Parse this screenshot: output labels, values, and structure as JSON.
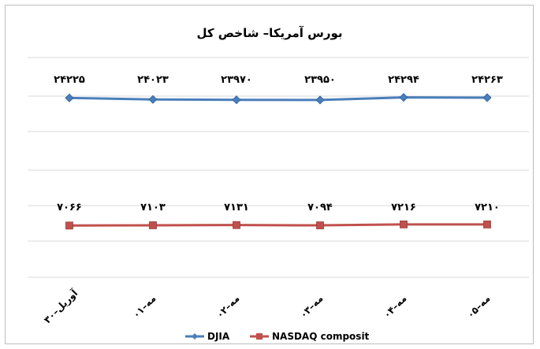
{
  "chart_data": {
    "type": "line",
    "title": "بورس آمریکا– شاخص کل",
    "categories": [
      "۳۰–آوریل",
      "۰۱–مه",
      "۰۲–مه",
      "۰۳–مه",
      "۰۴–مه",
      "۰۵–مه"
    ],
    "series": [
      {
        "name": "DJIA",
        "values": [
          24225,
          24023,
          23970,
          23950,
          24294,
          24263
        ],
        "labels": [
          "۲۴۲۲۵",
          "۲۴۰۲۳",
          "۲۳۹۷۰",
          "۲۳۹۵۰",
          "۲۴۲۹۴",
          "۲۴۲۶۳"
        ],
        "color": "#4a7ebb",
        "marker": "diamond"
      },
      {
        "name": "NASDAQ composit",
        "values": [
          7066,
          7103,
          7131,
          7094,
          7216,
          7210
        ],
        "labels": [
          "۷۰۶۶",
          "۷۱۰۳",
          "۷۱۳۱",
          "۷۰۹۴",
          "۷۲۱۶",
          "۷۲۱۰"
        ],
        "color": "#c0504d",
        "marker": "square"
      }
    ],
    "grid": true,
    "legend": "bottom"
  }
}
